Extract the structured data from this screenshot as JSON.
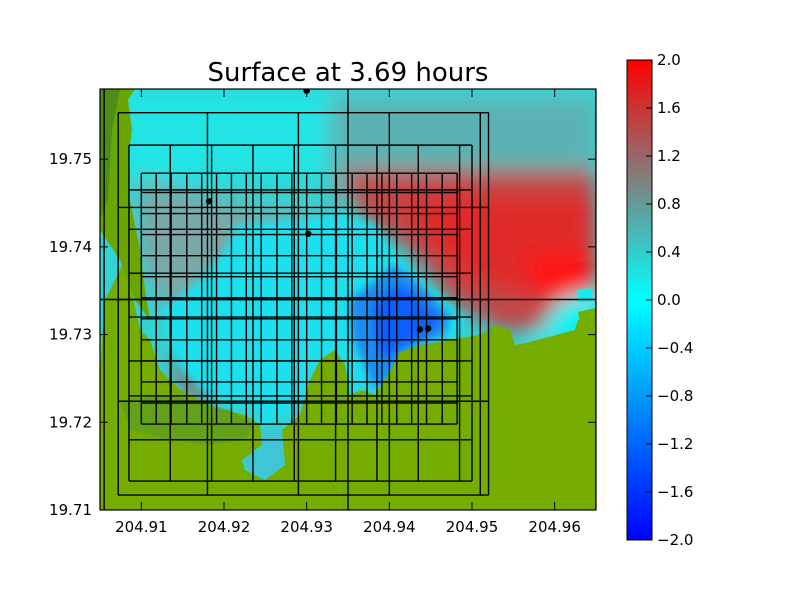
{
  "chart_data": {
    "type": "heatmap",
    "title": "Surface at 3.69 hours",
    "xlabel": "",
    "ylabel": "",
    "xlim": [
      204.905,
      204.965
    ],
    "ylim": [
      19.71,
      19.758
    ],
    "x_ticks": [
      "204.91",
      "204.92",
      "204.93",
      "204.94",
      "204.95",
      "204.96"
    ],
    "y_ticks": [
      "19.71",
      "19.72",
      "19.73",
      "19.74",
      "19.75"
    ],
    "colorbar": {
      "min": -2.0,
      "max": 2.0,
      "ticks": [
        "2.0",
        "1.6",
        "1.2",
        "0.8",
        "0.4",
        "0.0",
        "−0.4",
        "−0.8",
        "−1.2",
        "−1.6",
        "−2.0"
      ],
      "colors": {
        "low": "#0000ff",
        "mid": "#00ffff",
        "high": "#ff0000",
        "mid_high": "#808080"
      }
    },
    "land_color": "#6fa800",
    "gauges": [
      {
        "x": 204.93,
        "y": 19.7578
      },
      {
        "x": 204.9182,
        "y": 19.7452
      },
      {
        "x": 204.9302,
        "y": 19.7415
      },
      {
        "x": 204.9437,
        "y": 19.7306
      },
      {
        "x": 204.9447,
        "y": 19.7307
      }
    ],
    "grid_levels": [
      {
        "xs": [
          204.9055,
          204.965
        ],
        "ys": [
          19.734
        ]
      },
      {
        "xs": [
          204.935
        ],
        "ys": []
      },
      {
        "xs": [
          204.9072,
          204.918,
          204.929,
          204.94,
          204.951,
          204.952
        ],
        "ys": [
          19.7117,
          19.7224,
          19.734,
          19.7445,
          19.7553
        ]
      },
      {
        "xs": [
          204.9085,
          204.9135,
          204.9185,
          204.9235,
          204.9285,
          204.9335,
          204.9385,
          204.9435,
          204.9485,
          204.95
        ],
        "ys": [
          19.7133,
          19.718,
          19.723,
          19.727,
          19.732,
          19.737,
          19.742,
          19.7465,
          19.7516
        ]
      },
      {
        "xs": [
          204.91,
          204.9118,
          204.9136,
          204.9155,
          204.9173,
          204.9191,
          204.9209,
          204.9227,
          204.9245,
          204.9264,
          204.9282,
          204.93,
          204.9318,
          204.9336,
          204.9355,
          204.9373,
          204.9391,
          204.9409,
          204.9427,
          204.9445,
          204.9464,
          204.9482
        ],
        "ys": [
          19.7198,
          19.7222,
          19.7246,
          19.727,
          19.7294,
          19.7318,
          19.7342,
          19.7366,
          19.739,
          19.7414,
          19.7438,
          19.7462,
          19.7484
        ]
      }
    ]
  }
}
